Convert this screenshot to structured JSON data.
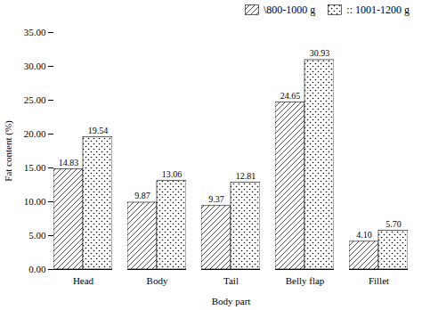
{
  "chart_data": {
    "type": "bar",
    "xlabel": "Body part",
    "ylabel": "Fat content (%)",
    "categories": [
      "Head",
      "Body",
      "Tail",
      "Belly flap",
      "Fillet"
    ],
    "series": [
      {
        "name": "\\800-1000 g",
        "color": "white",
        "values": [
          14.83,
          9.87,
          9.37,
          24.65,
          4.1
        ],
        "value_labels": [
          "14.83",
          "9.87",
          "9.37",
          "24.65",
          "4.10"
        ]
      },
      {
        "name": ":: 1001-1200 g",
        "color": "white",
        "values": [
          19.54,
          13.06,
          12.81,
          30.93,
          5.7
        ],
        "value_labels": [
          "19.54",
          "13.06",
          "12.81",
          "30.93",
          "5.70"
        ]
      }
    ],
    "ylim": [
      0,
      35.0
    ],
    "yticks": [
      {
        "value": 0,
        "label": "0.00"
      },
      {
        "value": 5,
        "label": "5.00"
      },
      {
        "value": 10,
        "label": "10.00"
      },
      {
        "value": 15,
        "label": "15.00"
      },
      {
        "value": 20,
        "label": "20.00"
      },
      {
        "value": 25,
        "label": "25.00"
      },
      {
        "value": 30,
        "label": "30.00"
      },
      {
        "value": 35,
        "label": "35.00"
      }
    ],
    "data_labels": true,
    "legend": "upper right",
    "grid": false
  }
}
